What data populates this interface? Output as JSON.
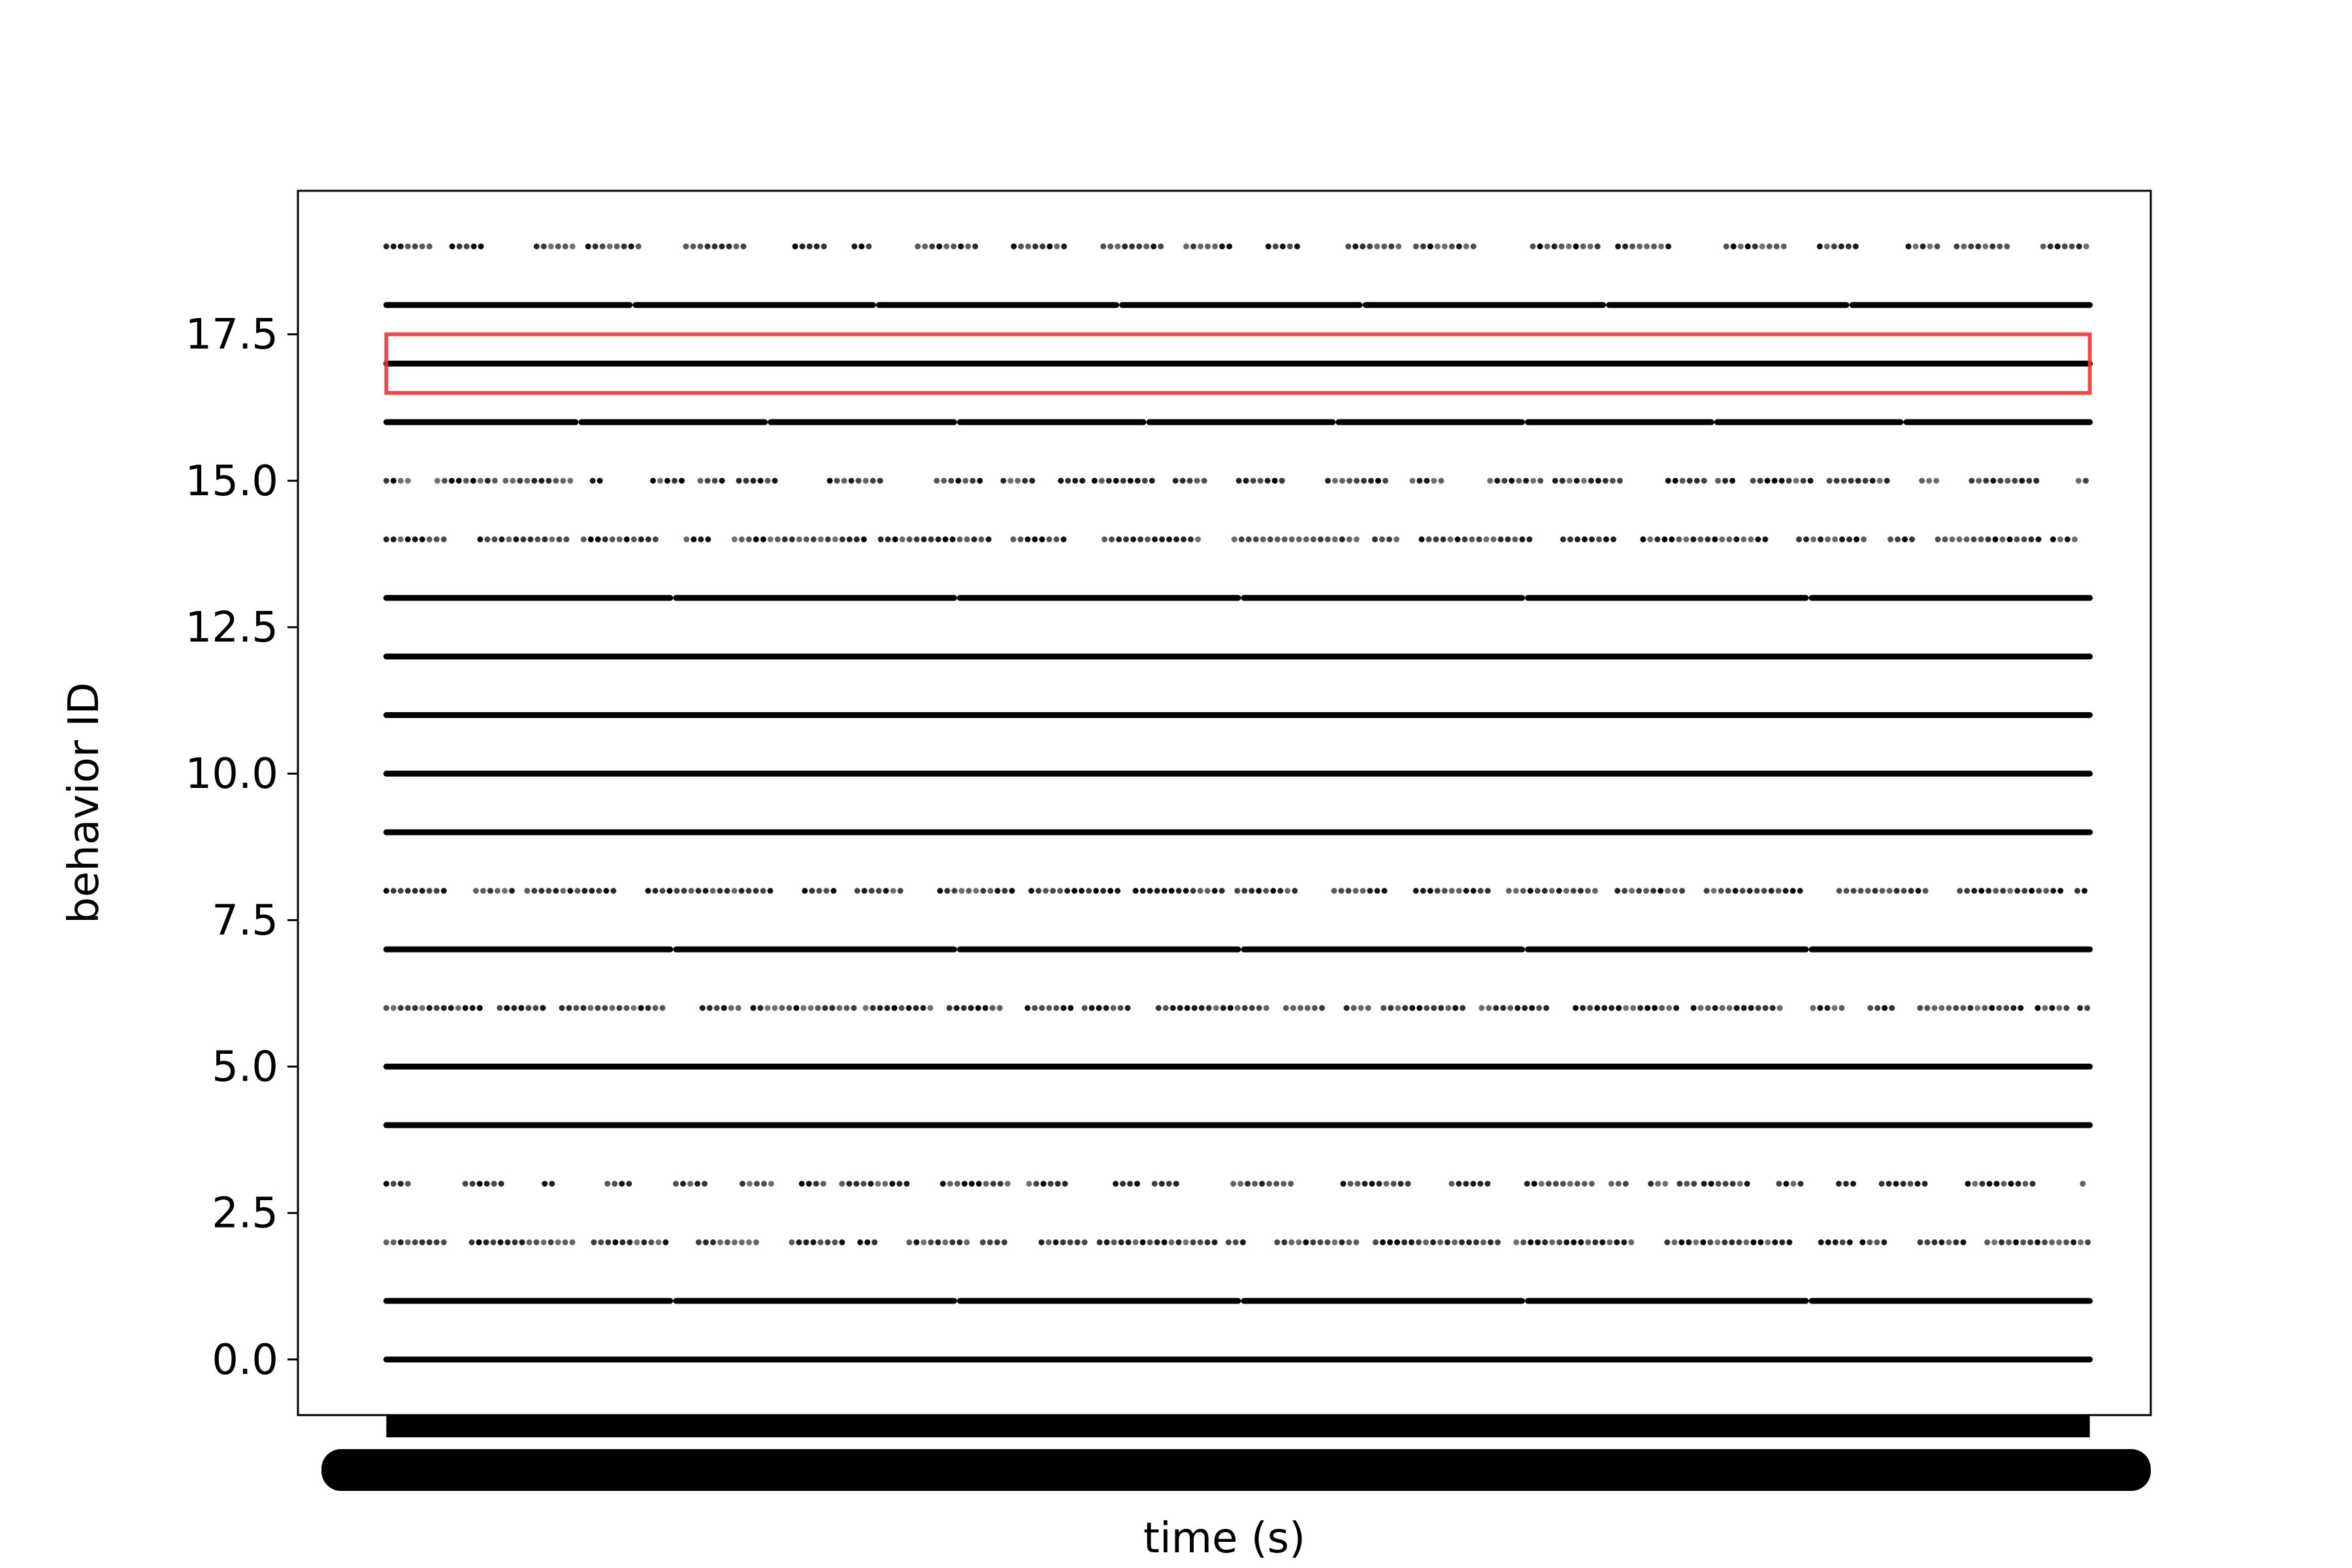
{
  "chart_data": {
    "type": "scatter",
    "title": "",
    "xlabel": "time (s)",
    "ylabel": "behavior ID",
    "ylim": [
      -0.95,
      19.95
    ],
    "xlim": [
      -4.5,
      299.5
    ],
    "yticks": [
      "0.0",
      "2.5",
      "5.0",
      "7.5",
      "10.0",
      "12.5",
      "15.0",
      "17.5"
    ],
    "grid": false,
    "legend": "none",
    "marker_color": "#000000",
    "x_range": [
      10,
      289.5
    ],
    "rows": [
      {
        "id": 0,
        "gap_every": 0,
        "sparse": false
      },
      {
        "id": 1,
        "gap_every": 46,
        "sparse": false
      },
      {
        "id": 2,
        "gap_every": 11,
        "sparse": true
      },
      {
        "id": 3,
        "gap_every": 9,
        "sparse": true
      },
      {
        "id": 4,
        "gap_every": 0,
        "sparse": false
      },
      {
        "id": 5,
        "gap_every": 0,
        "sparse": false
      },
      {
        "id": 6,
        "gap_every": 13,
        "sparse": true
      },
      {
        "id": 7,
        "gap_every": 47,
        "sparse": false
      },
      {
        "id": 8,
        "gap_every": 17,
        "sparse": true
      },
      {
        "id": 9,
        "gap_every": 0,
        "sparse": false
      },
      {
        "id": 10,
        "gap_every": 0,
        "sparse": false
      },
      {
        "id": 11,
        "gap_every": 0,
        "sparse": false
      },
      {
        "id": 12,
        "gap_every": 0,
        "sparse": false
      },
      {
        "id": 13,
        "gap_every": 47,
        "sparse": false
      },
      {
        "id": 14,
        "gap_every": 13,
        "sparse": true
      },
      {
        "id": 15,
        "gap_every": 7,
        "sparse": true
      },
      {
        "id": 16,
        "gap_every": 31,
        "sparse": false
      },
      {
        "id": 17,
        "gap_every": 0,
        "sparse": false
      },
      {
        "id": 18,
        "gap_every": 38,
        "sparse": false
      },
      {
        "id": 19,
        "gap_every": 6,
        "sparse": true
      }
    ],
    "highlight": {
      "id": 17,
      "y_range": [
        16.5,
        17.5
      ],
      "x_range": [
        10,
        289.5
      ],
      "color": "#e8393a"
    }
  }
}
